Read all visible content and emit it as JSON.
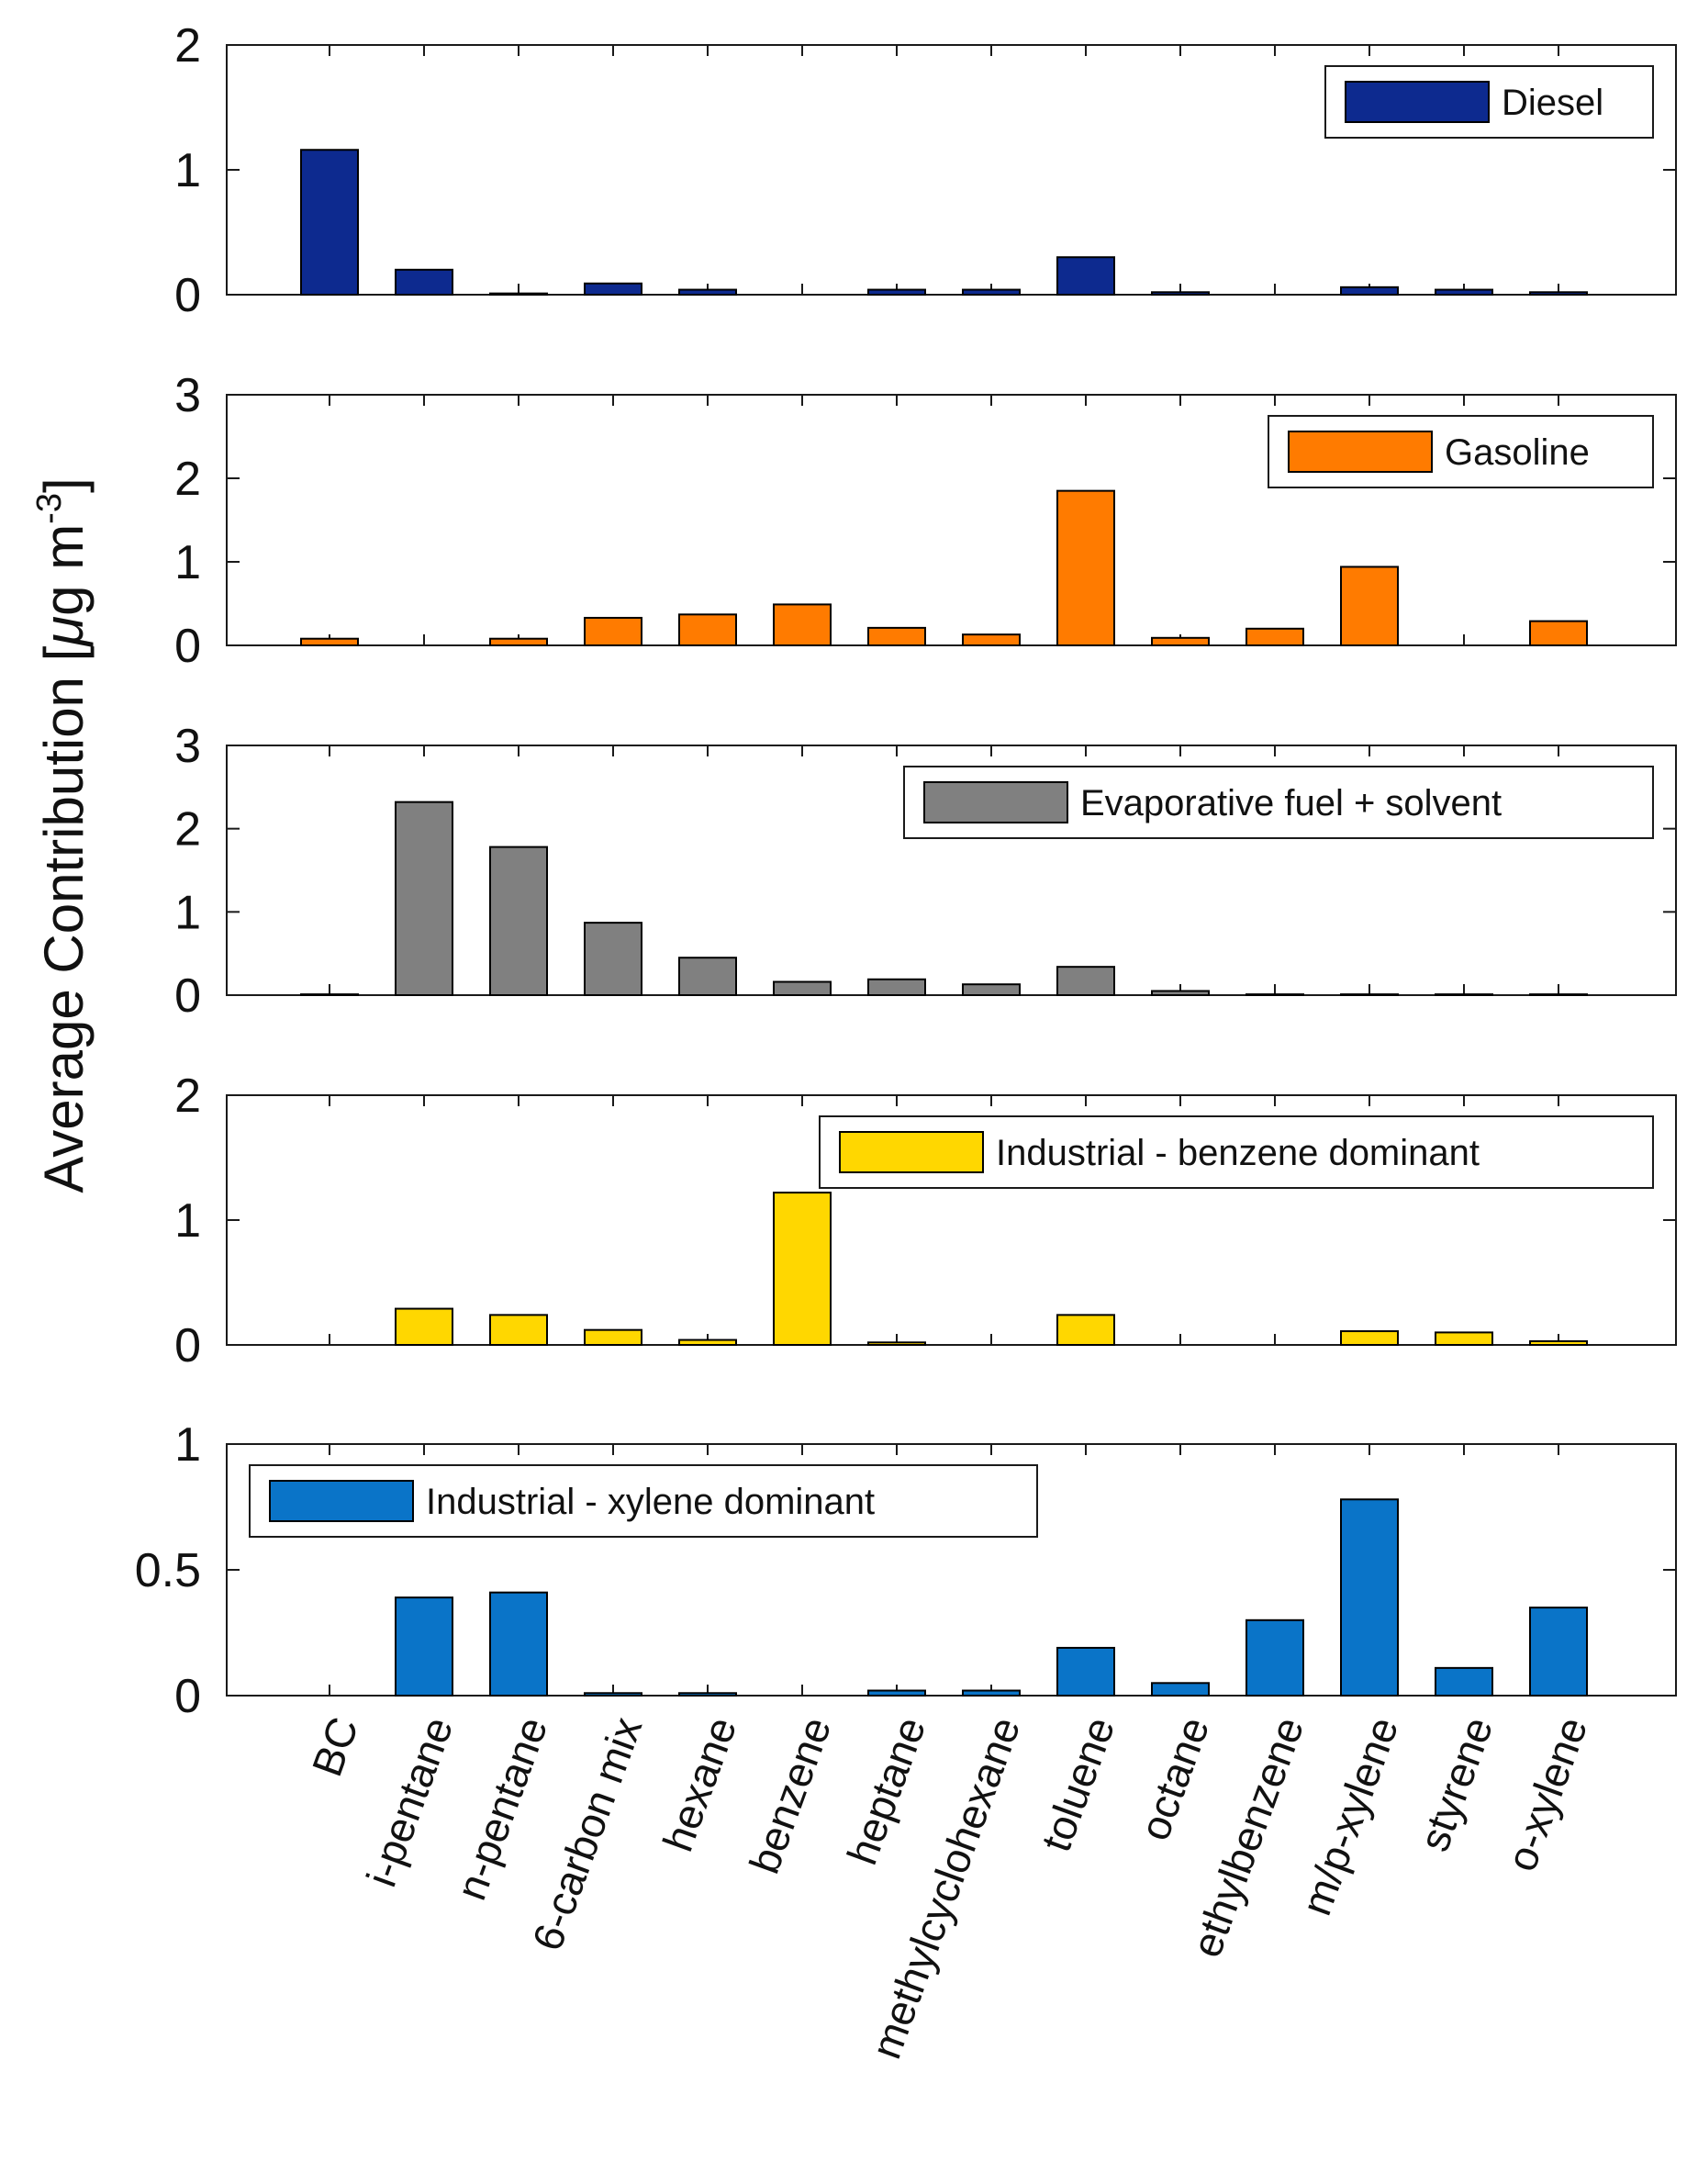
{
  "chart_data": {
    "type": "bar",
    "ylabel": {
      "main": "Average Contribution [",
      "mu": "μ",
      "unit": "g m",
      "sup": "-3",
      "close": "]"
    },
    "categories": [
      "BC",
      "i-pentane",
      "n-pentane",
      "6-carbon mix",
      "hexane",
      "benzene",
      "heptane",
      "methylcyclohexane",
      "toluene",
      "octane",
      "ethylbenzene",
      "m/p-xylene",
      "styrene",
      "o-xylene"
    ],
    "panels": [
      {
        "name": "Diesel",
        "color": "#0d2a8f",
        "ylim": [
          0,
          2
        ],
        "yticks": [
          0,
          1,
          2
        ],
        "ytick_labels": [
          "0",
          "1",
          "2"
        ],
        "legend_loc": "top-right",
        "values": [
          1.16,
          0.2,
          0.01,
          0.09,
          0.04,
          0.0,
          0.04,
          0.04,
          0.3,
          0.02,
          0.0,
          0.06,
          0.04,
          0.02
        ]
      },
      {
        "name": "Gasoline",
        "color": "#ff7b00",
        "ylim": [
          0,
          3
        ],
        "yticks": [
          0,
          1,
          2,
          3
        ],
        "ytick_labels": [
          "0",
          "1",
          "2",
          "3"
        ],
        "legend_loc": "top-right",
        "values": [
          0.08,
          0.0,
          0.08,
          0.33,
          0.37,
          0.49,
          0.21,
          0.13,
          1.85,
          0.09,
          0.2,
          0.94,
          0.0,
          0.29
        ]
      },
      {
        "name": "Evaporative fuel + solvent",
        "color": "#808080",
        "ylim": [
          0,
          3
        ],
        "yticks": [
          0,
          1,
          2,
          3
        ],
        "ytick_labels": [
          "0",
          "1",
          "2",
          "3"
        ],
        "legend_loc": "top-right",
        "values": [
          0.01,
          2.32,
          1.78,
          0.87,
          0.45,
          0.16,
          0.19,
          0.13,
          0.34,
          0.05,
          0.01,
          0.01,
          0.01,
          0.01
        ]
      },
      {
        "name": "Industrial - benzene dominant",
        "color": "#ffd700",
        "ylim": [
          0,
          2
        ],
        "yticks": [
          0,
          1,
          2
        ],
        "ytick_labels": [
          "0",
          "1",
          "2"
        ],
        "legend_loc": "top-right",
        "values": [
          0.0,
          0.29,
          0.24,
          0.12,
          0.04,
          1.22,
          0.02,
          0.0,
          0.24,
          0.0,
          0.0,
          0.11,
          0.1,
          0.03
        ]
      },
      {
        "name": "Industrial - xylene dominant",
        "color": "#0a74c8",
        "ylim": [
          0,
          1
        ],
        "yticks": [
          0,
          0.5,
          1
        ],
        "ytick_labels": [
          "0",
          "0.5",
          "1"
        ],
        "legend_loc": "top-left",
        "values": [
          0.0,
          0.39,
          0.41,
          0.01,
          0.01,
          0.0,
          0.02,
          0.02,
          0.19,
          0.05,
          0.3,
          0.78,
          0.11,
          0.35
        ]
      }
    ]
  }
}
